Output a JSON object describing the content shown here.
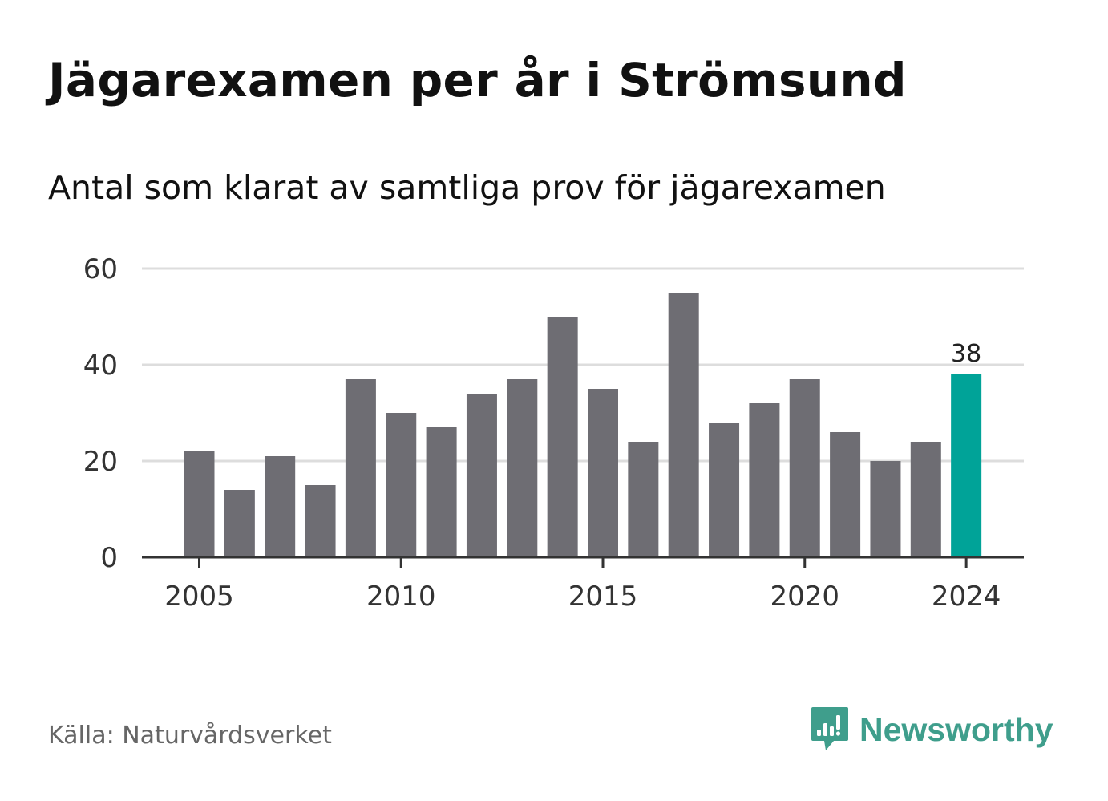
{
  "header": {
    "title": "Jägarexamen per år i Strömsund",
    "subtitle": "Antal som klarat av samtliga prov för jägarexamen"
  },
  "footer": {
    "source": "Källa: Naturvårdsverket",
    "brand_name": "Newsworthy",
    "brand_icon": "bar-chart-speech-bubble-icon"
  },
  "colors": {
    "bar": "#6e6d73",
    "highlight": "#00a398",
    "grid": "#dddddd",
    "axis": "#333333",
    "text": "#333333",
    "brand": "#3f9e8c"
  },
  "chart_data": {
    "type": "bar",
    "title": "",
    "xlabel": "",
    "ylabel": "",
    "categories": [
      "2005",
      "2006",
      "2007",
      "2008",
      "2009",
      "2010",
      "2011",
      "2012",
      "2013",
      "2014",
      "2015",
      "2016",
      "2017",
      "2018",
      "2019",
      "2020",
      "2021",
      "2022",
      "2023",
      "2024"
    ],
    "values": [
      22,
      14,
      21,
      15,
      37,
      30,
      27,
      34,
      37,
      50,
      35,
      24,
      55,
      28,
      32,
      37,
      26,
      20,
      24,
      38
    ],
    "ylim": [
      0,
      60
    ],
    "yticks": [
      0,
      20,
      40,
      60
    ],
    "xtick_labels": [
      "2005",
      "2010",
      "2015",
      "2020",
      "2024"
    ],
    "highlight_category": "2024",
    "data_labels": [
      {
        "category": "2024",
        "text": "38"
      }
    ],
    "grid": true,
    "legend": "none"
  }
}
